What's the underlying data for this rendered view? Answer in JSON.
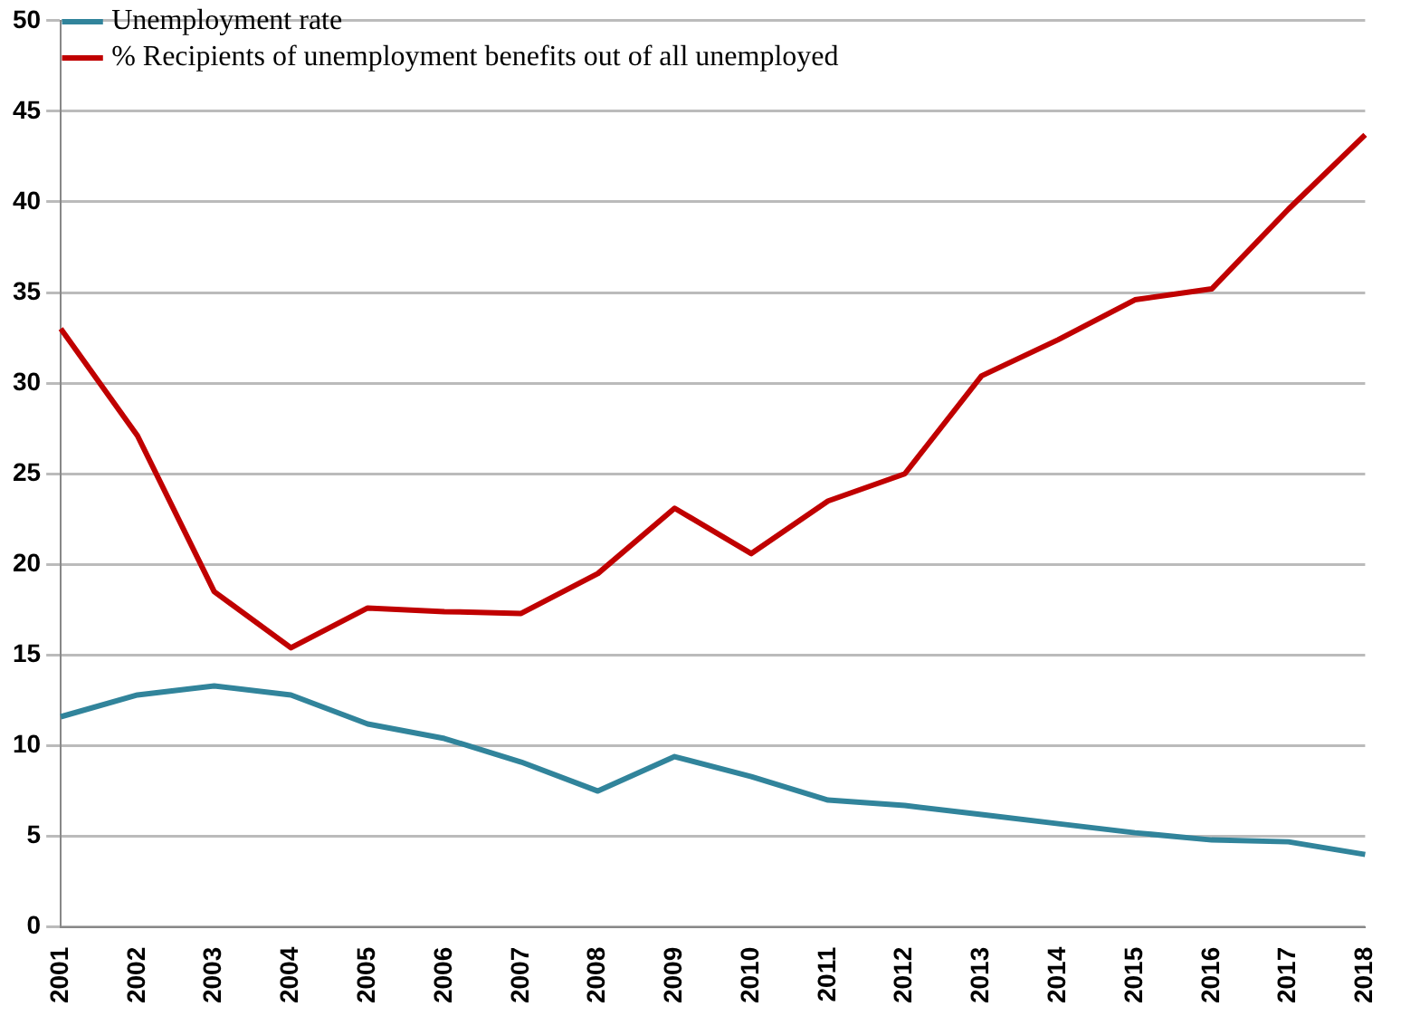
{
  "chart_data": {
    "type": "line",
    "categories": [
      "2001",
      "2002",
      "2003",
      "2004",
      "2005",
      "2006",
      "2007",
      "2008",
      "2009",
      "2010",
      "2011",
      "2012",
      "2013",
      "2014",
      "2015",
      "2016",
      "2017",
      "2018"
    ],
    "series": [
      {
        "name": "Unemployment rate",
        "color": "#31849b",
        "values": [
          11.6,
          12.8,
          13.3,
          12.8,
          11.2,
          10.4,
          9.1,
          7.5,
          9.4,
          8.3,
          7.0,
          6.7,
          6.2,
          5.7,
          5.2,
          4.8,
          4.7,
          4.0
        ]
      },
      {
        "name": "% Recipients of unemployment benefits out of all unemployed",
        "color": "#c00000",
        "values": [
          33.0,
          27.1,
          18.5,
          15.4,
          17.6,
          17.4,
          17.3,
          19.5,
          23.1,
          20.6,
          23.5,
          25.0,
          30.4,
          32.4,
          34.6,
          35.2,
          39.6,
          43.7
        ]
      }
    ],
    "ylim": [
      0,
      50
    ],
    "yticks": [
      0,
      5,
      10,
      15,
      20,
      25,
      30,
      35,
      40,
      45,
      50
    ],
    "grid": "y",
    "legend": "top left",
    "marker": "none",
    "line_style": "solid"
  }
}
